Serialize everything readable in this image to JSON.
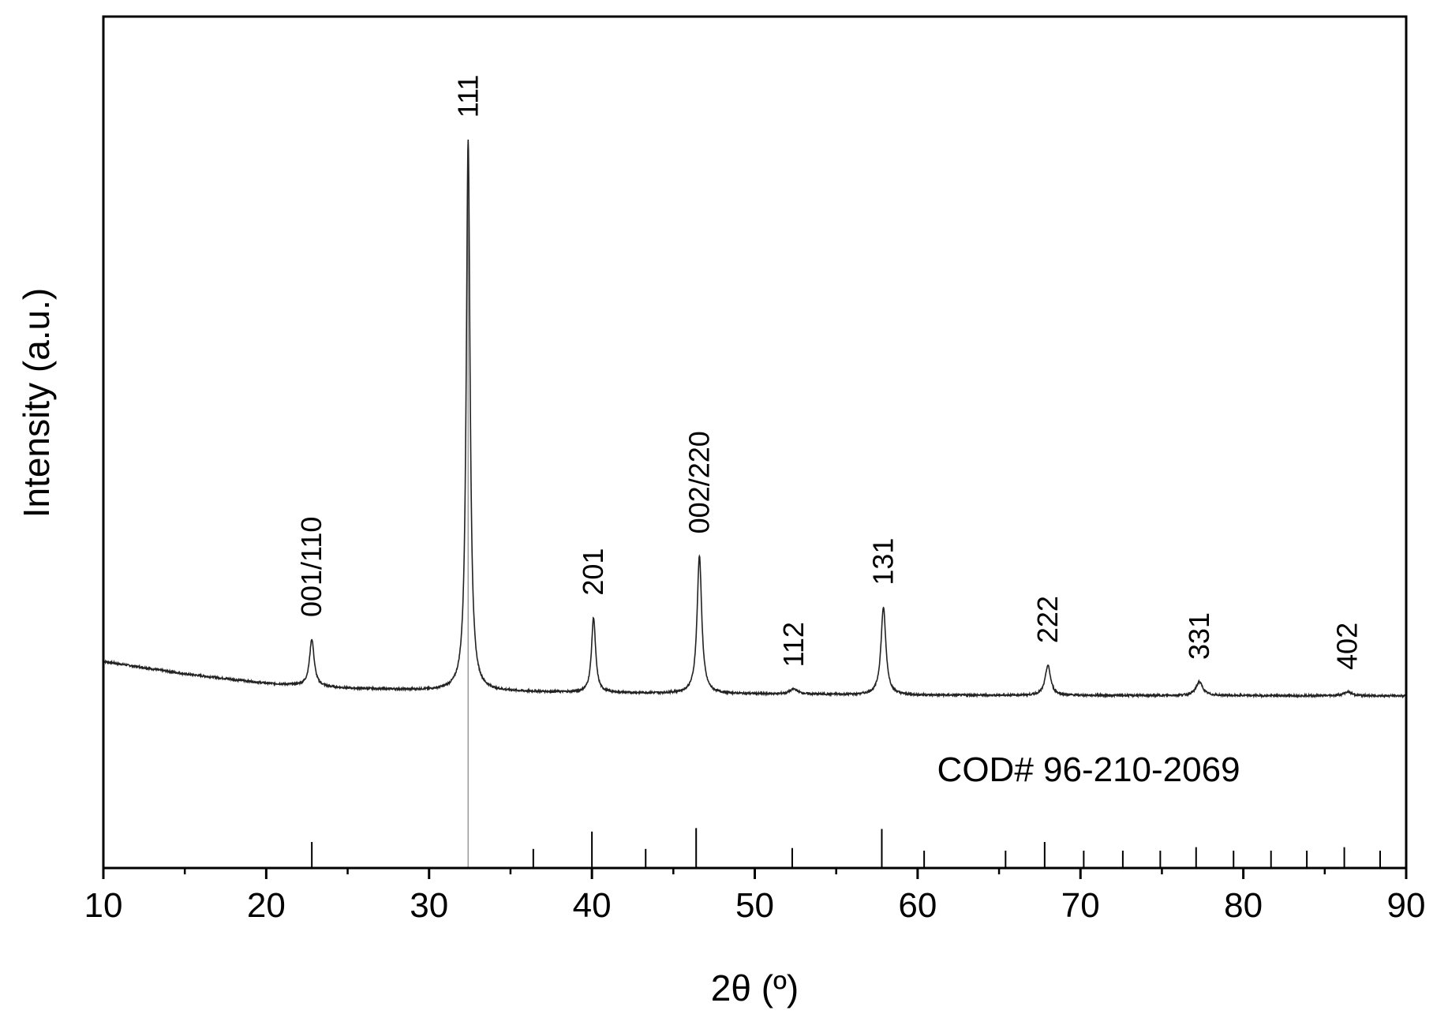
{
  "chart_data": {
    "type": "line",
    "xlabel": "2θ (º)",
    "ylabel": "Intensity (a.u.)",
    "xlim": [
      10,
      90
    ],
    "ylim": [
      -0.28,
      1.08
    ],
    "x_ticks": [
      "10",
      "20",
      "30",
      "40",
      "50",
      "60",
      "70",
      "80",
      "90"
    ],
    "x_minor_step": 5,
    "y_ticks_shown": false,
    "grid": false,
    "colors": {
      "pattern": "#222222",
      "reference": "#000000",
      "axis": "#000000"
    },
    "pattern": {
      "baseline_points": [
        [
          10,
          0.05
        ],
        [
          15,
          0.03
        ],
        [
          20,
          0.015
        ],
        [
          25,
          0.007
        ],
        [
          30,
          0.004
        ],
        [
          40,
          0.0
        ],
        [
          60,
          -0.004
        ],
        [
          90,
          -0.005
        ]
      ],
      "peaks": [
        {
          "x": 22.8,
          "height": 0.075,
          "width": 0.17,
          "label": "001/110"
        },
        {
          "x": 32.4,
          "height": 0.88,
          "width": 0.14,
          "label": "111"
        },
        {
          "x": 40.1,
          "height": 0.12,
          "width": 0.15,
          "label": "201"
        },
        {
          "x": 46.6,
          "height": 0.22,
          "width": 0.17,
          "label": "002/220"
        },
        {
          "x": 52.4,
          "height": 0.008,
          "width": 0.3,
          "label": "112"
        },
        {
          "x": 57.9,
          "height": 0.14,
          "width": 0.18,
          "label": "131"
        },
        {
          "x": 68.0,
          "height": 0.048,
          "width": 0.2,
          "label": "222"
        },
        {
          "x": 77.3,
          "height": 0.022,
          "width": 0.25,
          "label": "331"
        },
        {
          "x": 86.4,
          "height": 0.006,
          "width": 0.3,
          "label": "402"
        }
      ]
    },
    "reference": {
      "label": "COD# 96-210-2069",
      "lines": [
        {
          "x": 22.8,
          "intensity": 0.3
        },
        {
          "x": 32.4,
          "intensity": 1.0
        },
        {
          "x": 36.4,
          "intensity": 0.22
        },
        {
          "x": 40.0,
          "intensity": 0.42
        },
        {
          "x": 43.3,
          "intensity": 0.22
        },
        {
          "x": 46.4,
          "intensity": 0.46
        },
        {
          "x": 52.3,
          "intensity": 0.23
        },
        {
          "x": 57.8,
          "intensity": 0.45
        },
        {
          "x": 60.4,
          "intensity": 0.2
        },
        {
          "x": 65.4,
          "intensity": 0.2
        },
        {
          "x": 67.8,
          "intensity": 0.3
        },
        {
          "x": 70.2,
          "intensity": 0.2
        },
        {
          "x": 72.6,
          "intensity": 0.2
        },
        {
          "x": 74.9,
          "intensity": 0.2
        },
        {
          "x": 77.1,
          "intensity": 0.24
        },
        {
          "x": 79.4,
          "intensity": 0.2
        },
        {
          "x": 81.7,
          "intensity": 0.2
        },
        {
          "x": 83.9,
          "intensity": 0.2
        },
        {
          "x": 86.2,
          "intensity": 0.24
        },
        {
          "x": 88.4,
          "intensity": 0.2
        }
      ]
    }
  }
}
